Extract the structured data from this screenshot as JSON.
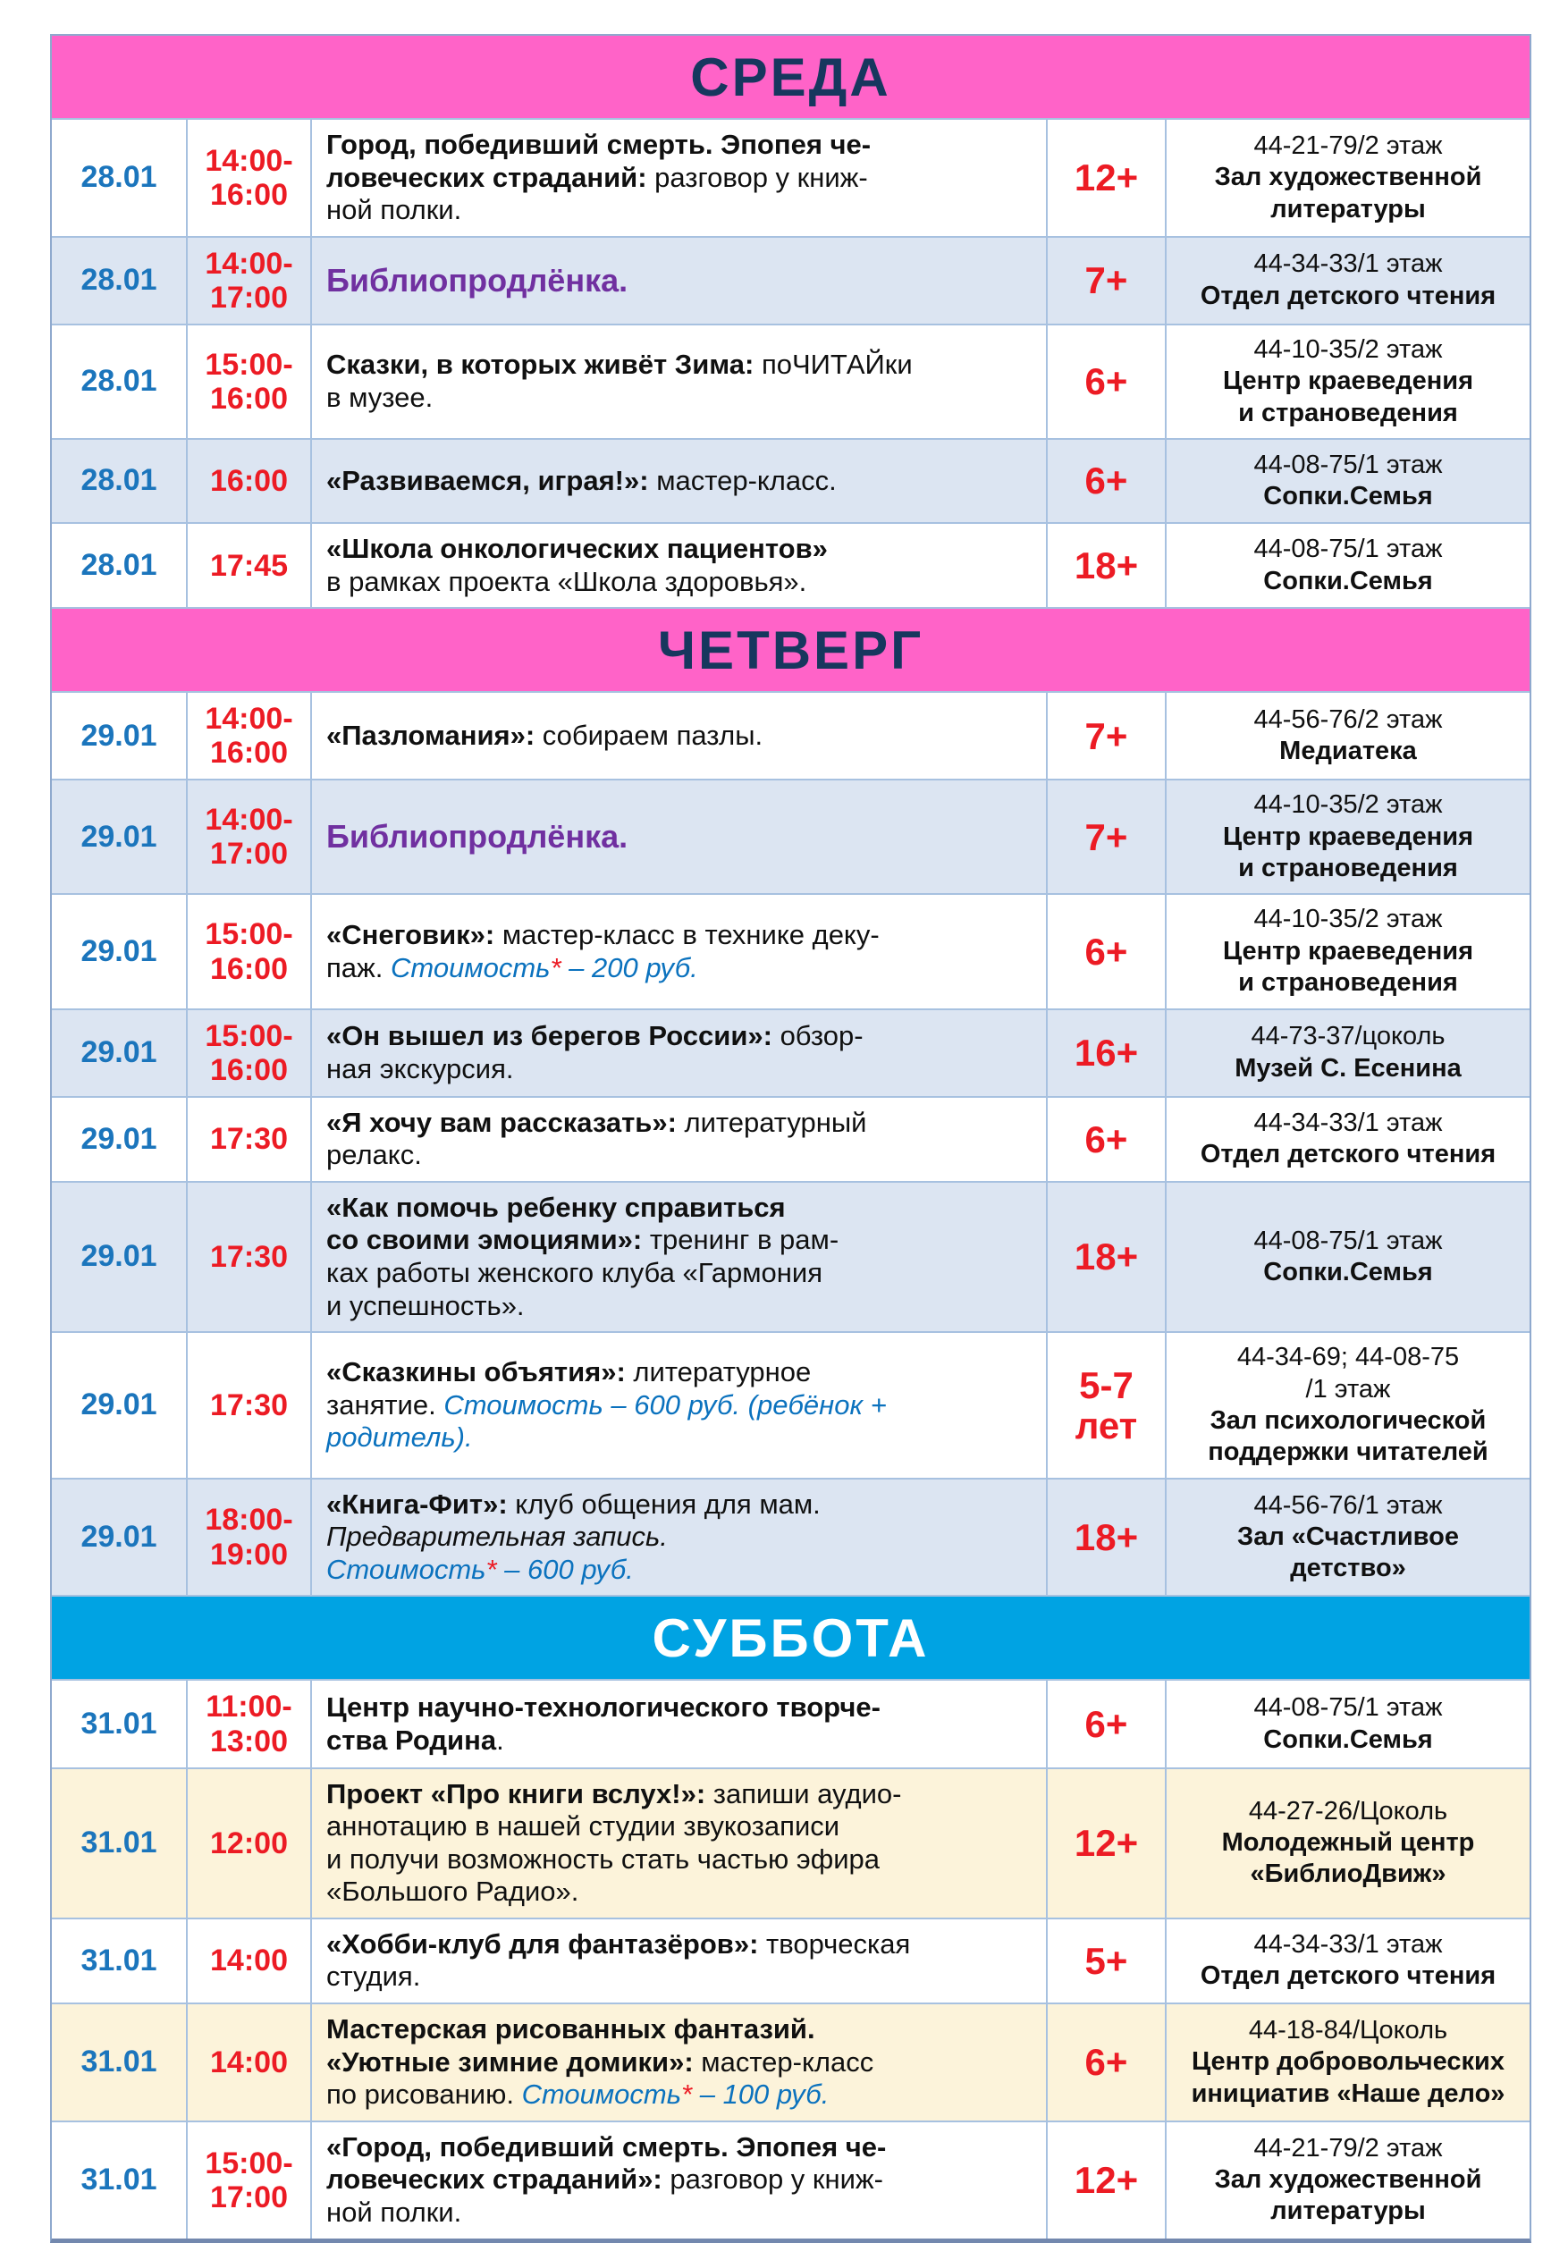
{
  "colors": {
    "weekday_header_bg": "#FF63C8",
    "saturday_header_bg": "#00A3E3",
    "header_text_dark": "#17375E",
    "header_text_light": "#FFFFFF",
    "date_blue": "#1B75BC",
    "time_red": "#EC1B24",
    "age_red": "#EC1B24",
    "cost_blue": "#0B72BE",
    "club_purple": "#7030A0",
    "row_tint_blue": "#DCE5F2",
    "row_tint_cream": "#FCF3DA",
    "grid_border": "#A7C1E0"
  },
  "sections": [
    {
      "day": "СРЕДА",
      "header_bg": "#FF63C8",
      "header_text_color": "#17375E",
      "rows": [
        {
          "date": "28.01",
          "time": "14:00-\n16:00",
          "age": "12+",
          "bg": "w",
          "desc": [
            {
              "t": "Город, победивший смерть. Эпопея че-\nловеческих страданий:",
              "s": "b"
            },
            {
              "t": " разговор у книж-\nной полки.",
              "s": "r"
            }
          ],
          "loc": [
            {
              "t": "44-21-79/2 этаж\n",
              "s": "r"
            },
            {
              "t": "Зал художественной\nлитературы",
              "s": "b"
            }
          ]
        },
        {
          "date": "28.01",
          "time": "14:00-\n17:00",
          "age": "7+",
          "bg": "t",
          "desc": [
            {
              "t": "Библиопродлёнка.",
              "s": "p"
            }
          ],
          "loc": [
            {
              "t": "44-34-33/1 этаж\n",
              "s": "r"
            },
            {
              "t": "Отдел детского чтения",
              "s": "b"
            }
          ]
        },
        {
          "date": "28.01",
          "time": "15:00-\n16:00",
          "age": "6+",
          "bg": "w",
          "desc": [
            {
              "t": "Сказки, в которых живёт Зима:",
              "s": "b"
            },
            {
              "t": " поЧИТАЙки\nв музее.",
              "s": "r"
            }
          ],
          "loc": [
            {
              "t": "44-10-35/2 этаж\n",
              "s": "r"
            },
            {
              "t": "Центр краеведения\nи страноведения",
              "s": "b"
            }
          ]
        },
        {
          "date": "28.01",
          "time": "16:00",
          "age": "6+",
          "bg": "t",
          "desc": [
            {
              "t": "«Развиваемся, играя!»:",
              "s": "b"
            },
            {
              "t": " мастер-класс.",
              "s": "r"
            }
          ],
          "loc": [
            {
              "t": "44-08-75/1 этаж\n",
              "s": "r"
            },
            {
              "t": "Сопки.Семья",
              "s": "b"
            }
          ]
        },
        {
          "date": "28.01",
          "time": "17:45",
          "age": "18+",
          "bg": "w",
          "desc": [
            {
              "t": "«Школа онкологических пациентов»",
              "s": "b"
            },
            {
              "t": "\nв рамках проекта «Школа здоровья».",
              "s": "r"
            }
          ],
          "loc": [
            {
              "t": "44-08-75/1 этаж\n",
              "s": "r"
            },
            {
              "t": "Сопки.Семья",
              "s": "b"
            }
          ]
        }
      ]
    },
    {
      "day": "ЧЕТВЕРГ",
      "header_bg": "#FF63C8",
      "header_text_color": "#17375E",
      "rows": [
        {
          "date": "29.01",
          "time": "14:00-\n16:00",
          "age": "7+",
          "bg": "w",
          "desc": [
            {
              "t": "«Пазломания»:",
              "s": "b"
            },
            {
              "t": " собираем пазлы.",
              "s": "r"
            }
          ],
          "loc": [
            {
              "t": "44-56-76/2 этаж\n",
              "s": "r"
            },
            {
              "t": "Медиатека",
              "s": "b"
            }
          ]
        },
        {
          "date": "29.01",
          "time": "14:00-\n17:00",
          "age": "7+",
          "bg": "t",
          "desc": [
            {
              "t": "Библиопродлёнка.",
              "s": "p"
            }
          ],
          "loc": [
            {
              "t": "44-10-35/2 этаж\n",
              "s": "r"
            },
            {
              "t": "Центр краеведения\nи страноведения",
              "s": "b"
            }
          ]
        },
        {
          "date": "29.01",
          "time": "15:00-\n16:00",
          "age": "6+",
          "bg": "w",
          "desc": [
            {
              "t": "«Снеговик»:",
              "s": "b"
            },
            {
              "t": " мастер-класс в технике деку-\nпаж. ",
              "s": "r"
            },
            {
              "t": "Стоимость",
              "s": "ci"
            },
            {
              "t": "*",
              "s": "ri"
            },
            {
              "t": " – 200 руб.",
              "s": "ci"
            }
          ],
          "loc": [
            {
              "t": "44-10-35/2 этаж\n",
              "s": "r"
            },
            {
              "t": "Центр краеведения\nи страноведения",
              "s": "b"
            }
          ]
        },
        {
          "date": "29.01",
          "time": "15:00-\n16:00",
          "age": "16+",
          "bg": "t",
          "desc": [
            {
              "t": "«Он вышел из берегов России»:",
              "s": "b"
            },
            {
              "t": " обзор-\nная экскурсия.",
              "s": "r"
            }
          ],
          "loc": [
            {
              "t": "44-73-37/цоколь\n",
              "s": "r"
            },
            {
              "t": "Музей С. Есенина",
              "s": "b"
            }
          ]
        },
        {
          "date": "29.01",
          "time": "17:30",
          "age": "6+",
          "bg": "w",
          "desc": [
            {
              "t": "«Я хочу вам рассказать»:",
              "s": "b"
            },
            {
              "t": " литературный\nрелакс.",
              "s": "r"
            }
          ],
          "loc": [
            {
              "t": "44-34-33/1 этаж\n",
              "s": "r"
            },
            {
              "t": "Отдел детского чтения",
              "s": "b"
            }
          ]
        },
        {
          "date": "29.01",
          "time": "17:30",
          "age": "18+",
          "bg": "t",
          "desc": [
            {
              "t": "«Как помочь ребенку справиться\nсо своими эмоциями»:",
              "s": "b"
            },
            {
              "t": " тренинг в рам-\nках работы женского клуба «Гармония\nи успешность».",
              "s": "r"
            }
          ],
          "loc": [
            {
              "t": "44-08-75/1 этаж\n",
              "s": "r"
            },
            {
              "t": "Сопки.Семья",
              "s": "b"
            }
          ]
        },
        {
          "date": "29.01",
          "time": "17:30",
          "age": "5-7\nлет",
          "bg": "w",
          "desc": [
            {
              "t": "«Сказкины объятия»:",
              "s": "b"
            },
            {
              "t": " литературное\nзанятие. ",
              "s": "r"
            },
            {
              "t": "Стоимость – 600 руб. (ребёнок +\nродитель).",
              "s": "ci"
            }
          ],
          "loc": [
            {
              "t": "44-34-69; 44-08-75\n/1 этаж\n",
              "s": "r"
            },
            {
              "t": "Зал психологической\nподдержки читателей",
              "s": "b"
            }
          ]
        },
        {
          "date": "29.01",
          "time": "18:00-\n19:00",
          "age": "18+",
          "bg": "t",
          "desc": [
            {
              "t": "«Книга-Фит»:",
              "s": "b"
            },
            {
              "t": " клуб общения для мам.\n",
              "s": "r"
            },
            {
              "t": "Предварительная запись.",
              "s": "bi"
            },
            {
              "t": "\n",
              "s": "r"
            },
            {
              "t": "Стоимость",
              "s": "ci"
            },
            {
              "t": "*",
              "s": "ri"
            },
            {
              "t": " – 600 руб.",
              "s": "ci"
            }
          ],
          "loc": [
            {
              "t": "44-56-76/1 этаж\n",
              "s": "r"
            },
            {
              "t": "Зал «Счастливое\nдетство»",
              "s": "b"
            }
          ]
        }
      ]
    },
    {
      "day": "СУББОТА",
      "header_bg": "#00A3E3",
      "header_text_color": "#FFFFFF",
      "rows": [
        {
          "date": "31.01",
          "time": "11:00-\n13:00",
          "age": "6+",
          "bg": "w",
          "desc": [
            {
              "t": "Центр научно-технологического творче-\nства Родина",
              "s": "b"
            },
            {
              "t": ".",
              "s": "r"
            }
          ],
          "loc": [
            {
              "t": "44-08-75/1 этаж\n",
              "s": "r"
            },
            {
              "t": "Сопки.Семья",
              "s": "b"
            }
          ]
        },
        {
          "date": "31.01",
          "time": "12:00",
          "age": "12+",
          "bg": "c",
          "desc": [
            {
              "t": "Проект «Про книги вслух!»:",
              "s": "b"
            },
            {
              "t": " запиши аудио-\nаннотацию в нашей студии звукозаписи\nи получи возможность стать частью эфира\n«Большого Радио».",
              "s": "r"
            }
          ],
          "loc": [
            {
              "t": "44-27-26/Цоколь\n",
              "s": "r"
            },
            {
              "t": "Молодежный центр\n«БиблиоДвиж»",
              "s": "b"
            }
          ]
        },
        {
          "date": "31.01",
          "time": "14:00",
          "age": "5+",
          "bg": "w",
          "desc": [
            {
              "t": "«Хобби-клуб для фантазёров»:",
              "s": "b"
            },
            {
              "t": " творческая\nстудия.",
              "s": "r"
            }
          ],
          "loc": [
            {
              "t": "44-34-33/1 этаж\n",
              "s": "r"
            },
            {
              "t": "Отдел детского чтения",
              "s": "b"
            }
          ]
        },
        {
          "date": "31.01",
          "time": "14:00",
          "age": "6+",
          "bg": "c",
          "desc": [
            {
              "t": "Мастерская рисованных фантазий.\n«Уютные зимние домики»:",
              "s": "b"
            },
            {
              "t": " мастер-класс\nпо рисованию. ",
              "s": "r"
            },
            {
              "t": "Стоимость",
              "s": "ci"
            },
            {
              "t": "*",
              "s": "ri"
            },
            {
              "t": " – 100 руб.",
              "s": "ci"
            }
          ],
          "loc": [
            {
              "t": "44-18-84/Цоколь\n",
              "s": "r"
            },
            {
              "t": "Центр добровольческих\nинициатив «Наше дело»",
              "s": "b"
            }
          ]
        },
        {
          "date": "31.01",
          "time": "15:00-\n17:00",
          "age": "12+",
          "bg": "w",
          "desc": [
            {
              "t": "«Город, победивший смерть. Эпопея че-\nловеческих страданий»:",
              "s": "b"
            },
            {
              "t": " разговор у книж-\nной полки.",
              "s": "r"
            }
          ],
          "loc": [
            {
              "t": "44-21-79/2 этаж\n",
              "s": "r"
            },
            {
              "t": "Зал художественной\nлитературы",
              "s": "b"
            }
          ]
        }
      ]
    }
  ]
}
